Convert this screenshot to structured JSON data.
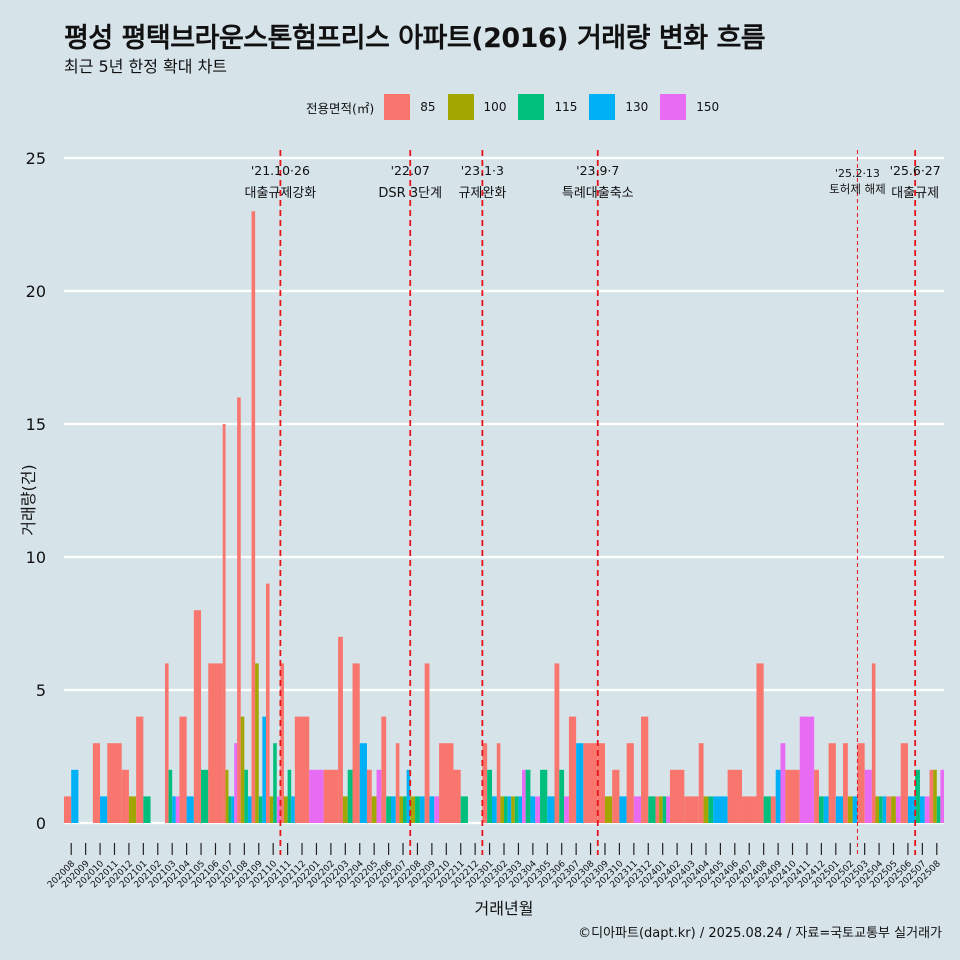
{
  "title": "평성 평택브라운스톤험프리스 아파트(2016) 거래량 변화 흐름",
  "subtitle": "최근 5년 한정 확대 차트",
  "caption": "©디아파트(dapt.kr) / 2025.08.24 / 자료=국토교통부 실거래가",
  "legend_title": "전용면적(㎡)",
  "chart_data": {
    "type": "bar",
    "xlabel": "거래년월",
    "ylabel": "거래량(건)",
    "ylim": [
      0,
      25
    ],
    "yticks": [
      0,
      5,
      10,
      15,
      20,
      25
    ],
    "grid": true,
    "legend_position": "top",
    "categories": [
      "202008",
      "202009",
      "202010",
      "202011",
      "202012",
      "202101",
      "202102",
      "202103",
      "202104",
      "202105",
      "202106",
      "202107",
      "202108",
      "202109",
      "202110",
      "202111",
      "202112",
      "202201",
      "202202",
      "202203",
      "202204",
      "202205",
      "202206",
      "202207",
      "202208",
      "202209",
      "202210",
      "202211",
      "202212",
      "202301",
      "202302",
      "202303",
      "202304",
      "202305",
      "202306",
      "202307",
      "202308",
      "202309",
      "202310",
      "202311",
      "202312",
      "202401",
      "202402",
      "202403",
      "202404",
      "202405",
      "202406",
      "202407",
      "202408",
      "202409",
      "202410",
      "202411",
      "202412",
      "202501",
      "202502",
      "202503",
      "202504",
      "202505",
      "202506",
      "202507",
      "202508"
    ],
    "series": [
      {
        "name": "85",
        "color": "#f8766d",
        "values": [
          1,
          0,
          3,
          3,
          2,
          4,
          0,
          6,
          4,
          8,
          6,
          15,
          16,
          23,
          9,
          6,
          4,
          0,
          2,
          7,
          6,
          2,
          4,
          3,
          0,
          6,
          3,
          2,
          0,
          3,
          3,
          0,
          0,
          0,
          6,
          4,
          3,
          3,
          2,
          3,
          4,
          1,
          2,
          1,
          3,
          0,
          2,
          1,
          6,
          1,
          2,
          0,
          2,
          3,
          3,
          3,
          6,
          1,
          3,
          0,
          2
        ]
      },
      {
        "name": "100",
        "color": "#a3a500",
        "values": [
          0,
          0,
          0,
          0,
          1,
          0,
          0,
          0,
          0,
          0,
          0,
          2,
          4,
          6,
          1,
          1,
          0,
          0,
          0,
          1,
          0,
          1,
          0,
          1,
          1,
          0,
          0,
          0,
          0,
          0,
          1,
          1,
          0,
          0,
          0,
          0,
          0,
          1,
          0,
          0,
          0,
          1,
          0,
          0,
          1,
          0,
          0,
          0,
          0,
          0,
          0,
          0,
          0,
          0,
          1,
          0,
          1,
          1,
          0,
          0,
          2
        ]
      },
      {
        "name": "115",
        "color": "#00bf7d",
        "values": [
          0,
          0,
          0,
          0,
          0,
          1,
          0,
          2,
          0,
          2,
          0,
          1,
          2,
          1,
          3,
          2,
          0,
          0,
          0,
          2,
          0,
          0,
          1,
          1,
          1,
          0,
          0,
          1,
          0,
          2,
          1,
          1,
          2,
          2,
          2,
          0,
          0,
          0,
          0,
          0,
          1,
          1,
          0,
          0,
          1,
          0,
          0,
          0,
          1,
          0,
          0,
          0,
          1,
          0,
          0,
          0,
          1,
          0,
          0,
          2,
          1
        ]
      },
      {
        "name": "130",
        "color": "#00b0f6",
        "values": [
          2,
          0,
          1,
          0,
          0,
          0,
          0,
          1,
          1,
          0,
          0,
          1,
          1,
          4,
          0,
          1,
          0,
          0,
          0,
          0,
          3,
          0,
          1,
          2,
          1,
          1,
          0,
          0,
          0,
          1,
          1,
          1,
          1,
          1,
          0,
          3,
          0,
          0,
          1,
          0,
          0,
          0,
          0,
          0,
          0,
          1,
          0,
          0,
          0,
          2,
          0,
          0,
          1,
          1,
          1,
          0,
          1,
          0,
          1,
          1,
          0
        ]
      },
      {
        "name": "150",
        "color": "#e76bf3",
        "values": [
          0,
          0,
          0,
          0,
          0,
          0,
          0,
          1,
          0,
          0,
          0,
          3,
          0,
          0,
          1,
          0,
          0,
          2,
          0,
          0,
          0,
          2,
          0,
          0,
          0,
          1,
          0,
          0,
          0,
          0,
          0,
          2,
          1,
          0,
          1,
          0,
          0,
          0,
          0,
          1,
          0,
          1,
          0,
          0,
          0,
          0,
          0,
          0,
          0,
          3,
          0,
          4,
          0,
          0,
          0,
          2,
          0,
          1,
          0,
          1,
          2
        ]
      }
    ],
    "events": [
      {
        "after": "202110",
        "date": "'21.10·26",
        "label": "대출규제강화",
        "style": "bold"
      },
      {
        "after": "202207",
        "date": "'22.07",
        "label": "DSR 3단계",
        "style": "bold"
      },
      {
        "after": "202212",
        "date": "'23.1·3",
        "label": "규제완화",
        "style": "bold"
      },
      {
        "after": "202308",
        "date": "'23.9·7",
        "label": "특례대출축소",
        "style": "bold"
      },
      {
        "after": "202502",
        "date": "'25.2·13",
        "label": "토허제 해제",
        "style": "thin"
      },
      {
        "after": "202506",
        "date": "'25.6·27",
        "label": "대출규제",
        "style": "bold"
      }
    ]
  }
}
